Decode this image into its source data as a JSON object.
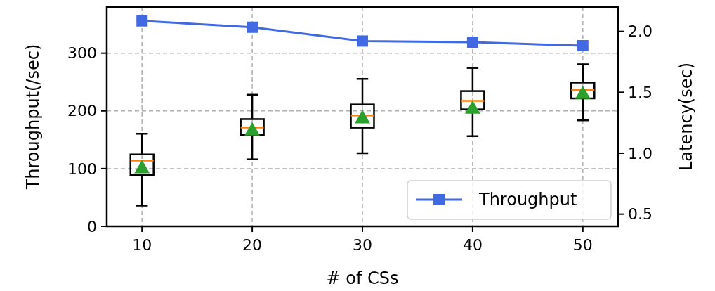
{
  "chart_data": {
    "type": "line",
    "xlabel": "# of CSs",
    "ylabel": "Throughput(/sec)",
    "y2label": "Latency(sec)",
    "xlim": [
      6.8,
      53.2
    ],
    "xticks": [
      10,
      20,
      30,
      40,
      50
    ],
    "ylim": [
      0,
      380
    ],
    "yticks": [
      0,
      100,
      200,
      300
    ],
    "y2lim": [
      0.4,
      2.2
    ],
    "y2ticks": [
      {
        "value": 0.5,
        "label": "0.5"
      },
      {
        "value": 1.0,
        "label": "1.0"
      },
      {
        "value": 1.5,
        "label": "1.5"
      },
      {
        "value": 2.0,
        "label": "2.0"
      }
    ],
    "grid": true,
    "legend": "bottom right",
    "series": [
      {
        "name": "Throughput",
        "color": "#4169e1",
        "marker": "square",
        "x": [
          10,
          20,
          30,
          40,
          50
        ],
        "values": [
          356,
          345,
          321,
          319,
          313
        ]
      },
      {
        "type": "box",
        "axis": "y2",
        "color": "#000000",
        "x": [
          10,
          20,
          30,
          40,
          50
        ],
        "boxes": [
          {
            "low": 0.57,
            "q1": 0.82,
            "median": 0.94,
            "q3": 0.99,
            "high": 1.16,
            "mean": 0.89
          },
          {
            "low": 0.95,
            "q1": 1.15,
            "median": 1.21,
            "q3": 1.28,
            "high": 1.48,
            "mean": 1.2
          },
          {
            "low": 1.0,
            "q1": 1.21,
            "median": 1.31,
            "q3": 1.4,
            "high": 1.61,
            "mean": 1.3
          },
          {
            "low": 1.14,
            "q1": 1.36,
            "median": 1.43,
            "q3": 1.51,
            "high": 1.7,
            "mean": 1.38
          },
          {
            "low": 1.27,
            "q1": 1.45,
            "median": 1.52,
            "q3": 1.58,
            "high": 1.73,
            "mean": 1.5
          }
        ]
      }
    ]
  }
}
